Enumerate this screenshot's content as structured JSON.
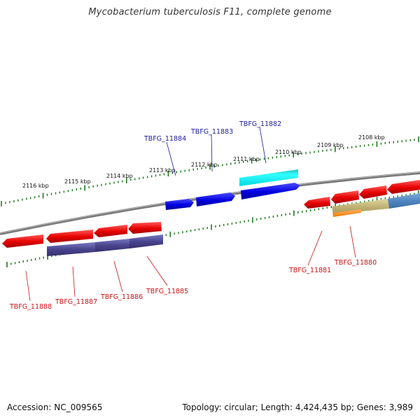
{
  "title": "Mycobacterium tuberculosis F11, complete genome",
  "footer": {
    "accession": "Accession: NC_009565",
    "summary": "Topology: circular; Length: 4,424,435 bp; Genes: 3,989"
  },
  "colors": {
    "backbone": "#7a7a7a",
    "tick": "#1e7a1e",
    "forward_gene_label": "#1a1aa0",
    "reverse_gene_label": "#cc1111"
  },
  "ticks": [
    {
      "label": "2116 kbp"
    },
    {
      "label": "2115 kbp"
    },
    {
      "label": "2114 kbp"
    },
    {
      "label": "2113 kbp"
    },
    {
      "label": "2112 kbp"
    },
    {
      "label": "2111 kbp"
    },
    {
      "label": "2110 kbp"
    },
    {
      "label": "2109 kbp"
    },
    {
      "label": "2108 kbp"
    }
  ],
  "forward_labels": [
    {
      "name": "TBFG_11884"
    },
    {
      "name": "TBFG_11883"
    },
    {
      "name": "TBFG_11882"
    }
  ],
  "reverse_labels": [
    {
      "name": "TBFG_11888"
    },
    {
      "name": "TBFG_11887"
    },
    {
      "name": "TBFG_11886"
    },
    {
      "name": "TBFG_11885"
    },
    {
      "name": "TBFG_11881"
    },
    {
      "name": "TBFG_11880"
    }
  ]
}
